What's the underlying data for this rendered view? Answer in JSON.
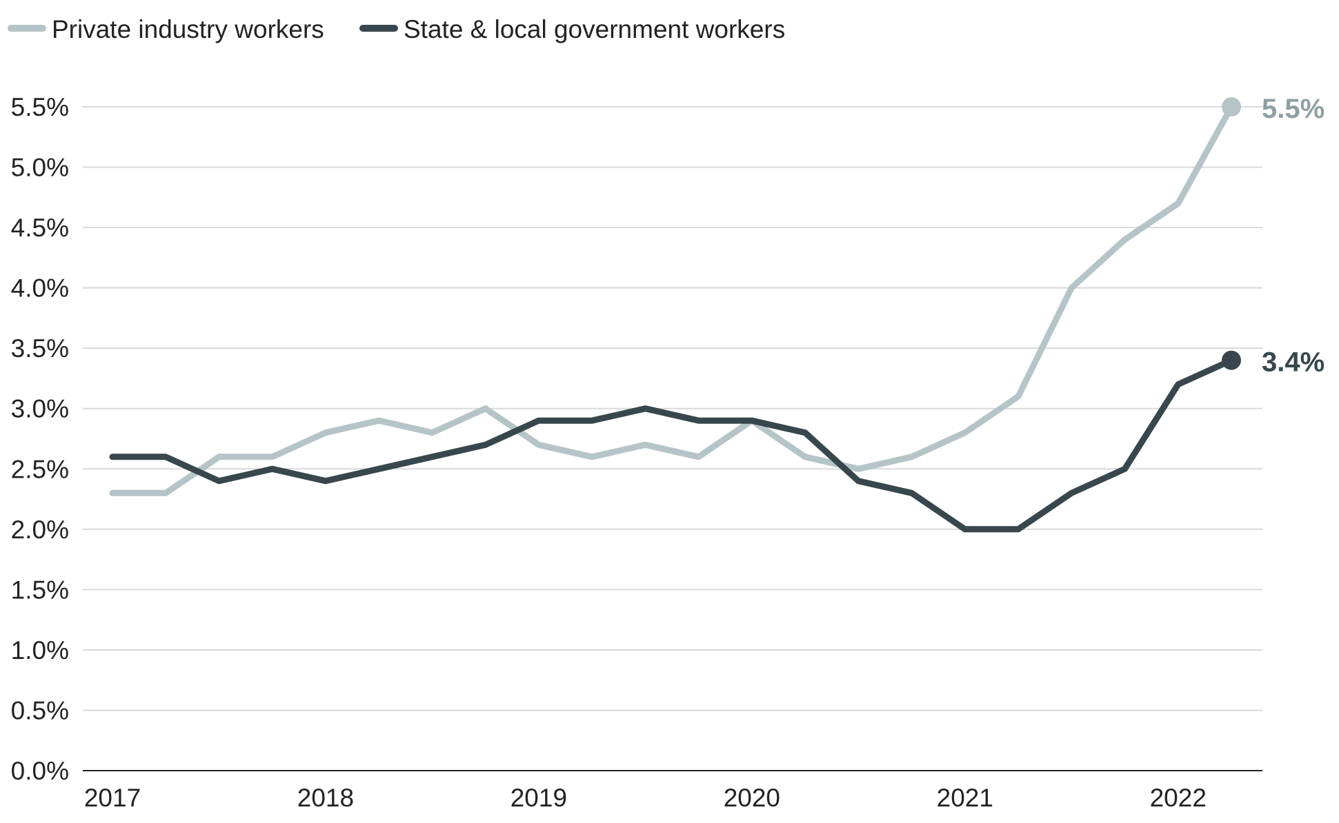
{
  "chart_data": {
    "type": "line",
    "title": "",
    "xlabel": "",
    "ylabel": "",
    "ylim": [
      0,
      5.5
    ],
    "grid": true,
    "legend_position": "top-left",
    "y_ticks": [
      0,
      0.5,
      1.0,
      1.5,
      2.0,
      2.5,
      3.0,
      3.5,
      4.0,
      4.5,
      5.0,
      5.5
    ],
    "y_tick_labels": [
      "0.0%",
      "0.5%",
      "1.0%",
      "1.5%",
      "2.0%",
      "2.5%",
      "3.0%",
      "3.5%",
      "4.0%",
      "4.5%",
      "5.0%",
      "5.5%"
    ],
    "x_ticks": [
      2017,
      2018,
      2019,
      2020,
      2021,
      2022
    ],
    "x_tick_labels": [
      "2017",
      "2018",
      "2019",
      "2020",
      "2021",
      "2022"
    ],
    "x": [
      2017.0,
      2017.25,
      2017.5,
      2017.75,
      2018.0,
      2018.25,
      2018.5,
      2018.75,
      2019.0,
      2019.25,
      2019.5,
      2019.75,
      2020.0,
      2020.25,
      2020.5,
      2020.75,
      2021.0,
      2021.25,
      2021.5,
      2021.75,
      2022.0,
      2022.25
    ],
    "series": [
      {
        "name": "Private industry workers",
        "color": "#b5c4c8",
        "values": [
          2.3,
          2.3,
          2.6,
          2.6,
          2.8,
          2.9,
          2.8,
          3.0,
          2.7,
          2.6,
          2.7,
          2.6,
          2.9,
          2.6,
          2.5,
          2.6,
          2.8,
          3.1,
          4.0,
          4.4,
          4.7,
          5.5
        ],
        "end_label": "5.5%",
        "end_label_color": "#8fa0a4"
      },
      {
        "name": "State & local government workers",
        "color": "#37474d",
        "values": [
          2.6,
          2.6,
          2.4,
          2.5,
          2.4,
          2.5,
          2.6,
          2.7,
          2.9,
          2.9,
          3.0,
          2.9,
          2.9,
          2.8,
          2.4,
          2.3,
          2.0,
          2.0,
          2.3,
          2.5,
          3.2,
          3.4
        ],
        "end_label": "3.4%",
        "end_label_color": "#37474d"
      }
    ]
  },
  "colors": {
    "grid": "#d9d9d9",
    "axis": "#222222",
    "text": "#222222"
  }
}
